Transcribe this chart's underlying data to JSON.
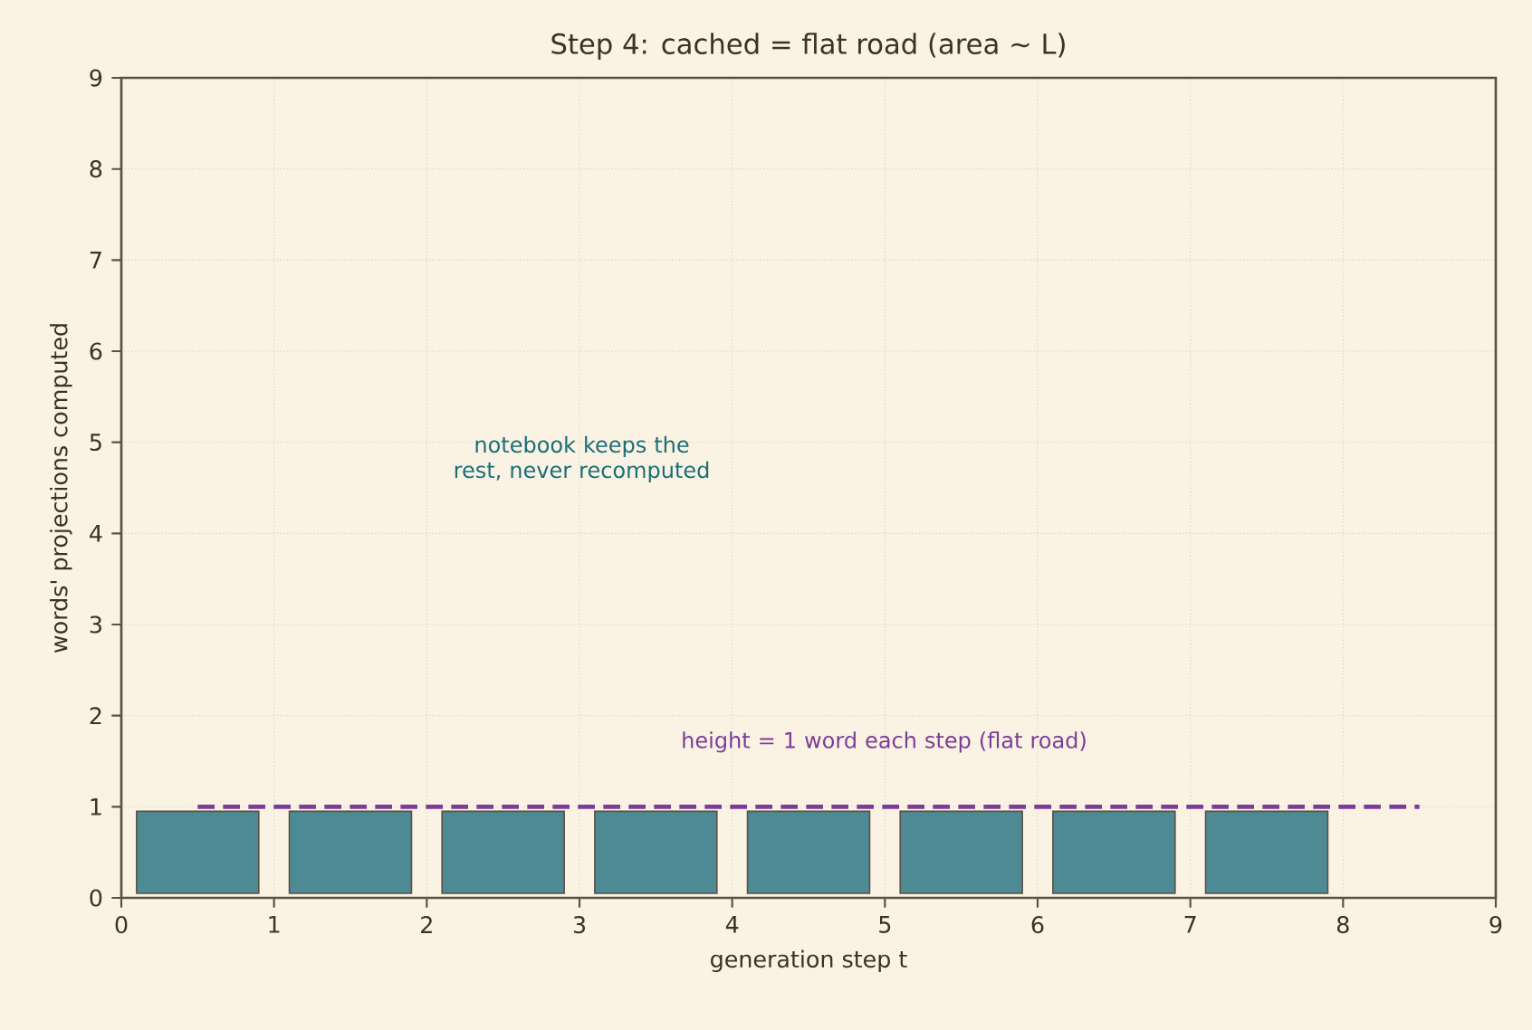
{
  "chart_data": {
    "type": "bar",
    "title": "Step 4: cached = flat road  (area ~ L)",
    "xlabel": "generation step t",
    "ylabel": "words' projections computed",
    "xlim": [
      0,
      9
    ],
    "ylim": [
      0,
      9
    ],
    "xticks": [
      0,
      1,
      2,
      3,
      4,
      5,
      6,
      7,
      8,
      9
    ],
    "yticks": [
      0,
      1,
      2,
      3,
      4,
      5,
      6,
      7,
      8,
      9
    ],
    "grid": true,
    "series": [
      {
        "color": "#4e8a94",
        "x": [
          0.5,
          1.5,
          2.5,
          3.5,
          4.5,
          5.5,
          6.5,
          7.5
        ],
        "base": [
          0.05,
          0.05,
          0.05,
          0.05,
          0.05,
          0.05,
          0.05,
          0.05
        ],
        "values": [
          0.9,
          0.9,
          0.9,
          0.9,
          0.9,
          0.9,
          0.9,
          0.9
        ]
      },
      {
        "type": "line",
        "color": "#7d3c98",
        "line_style": "dashed",
        "x": [
          0.5,
          8.5
        ],
        "values": [
          1,
          1
        ]
      }
    ],
    "annotations": [
      "notebook keeps the rest, never recomputed",
      "height = 1 word each step (flat road)"
    ]
  }
}
